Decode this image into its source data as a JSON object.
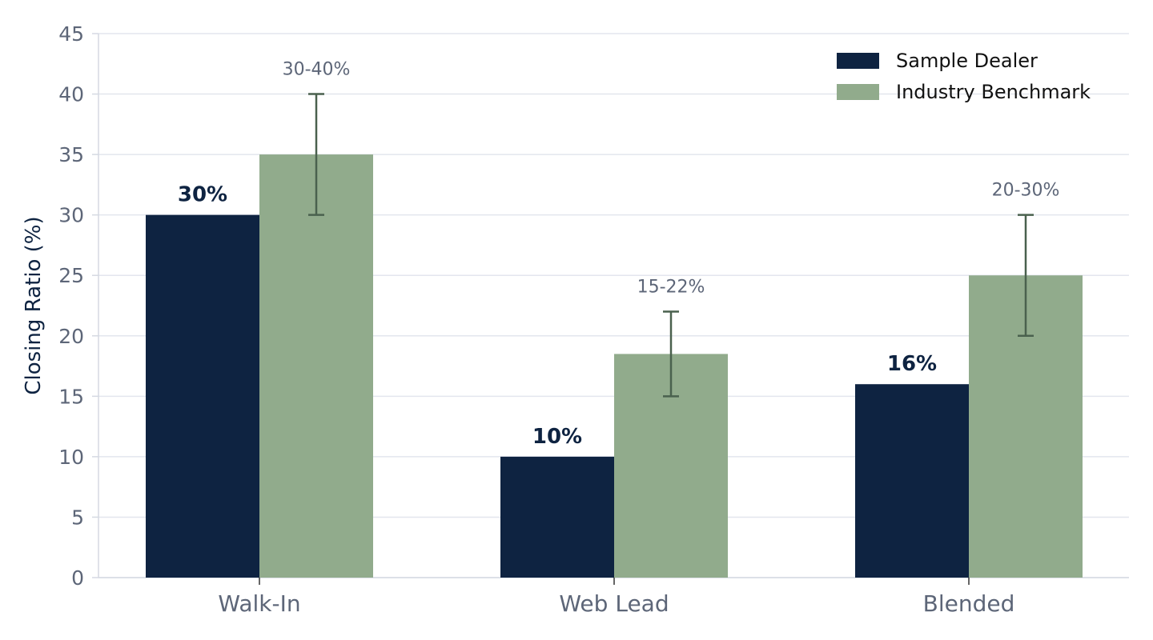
{
  "colors": {
    "dealer": "#0e2341",
    "benchmark": "#91ab8c",
    "error_bar": "#4a614e",
    "grid": "#e3e6ee",
    "axis": "#d5d9e2",
    "tick_text": "#5d6678",
    "value_text": "#0e2341",
    "range_text": "#5d6678",
    "legend_text": "#111111",
    "ylabel_text": "#0e2341"
  },
  "chart_data": {
    "type": "bar",
    "title": "",
    "xlabel": "",
    "ylabel": "Closing Ratio (%)",
    "ylim": [
      0,
      45
    ],
    "ytick_step": 5,
    "grid": true,
    "legend_position": "top-right",
    "categories": [
      "Walk-In",
      "Web Lead",
      "Blended"
    ],
    "series": [
      {
        "name": "Sample Dealer",
        "color_key": "dealer",
        "values": [
          30,
          10,
          16
        ],
        "data_labels": [
          "30%",
          "10%",
          "16%"
        ]
      },
      {
        "name": "Industry Benchmark",
        "color_key": "benchmark",
        "values": [
          35,
          18.5,
          25
        ],
        "error_low": [
          30,
          15,
          20
        ],
        "error_high": [
          40,
          22,
          30
        ],
        "range_labels": [
          "30-40%",
          "15-22%",
          "20-30%"
        ]
      }
    ]
  }
}
